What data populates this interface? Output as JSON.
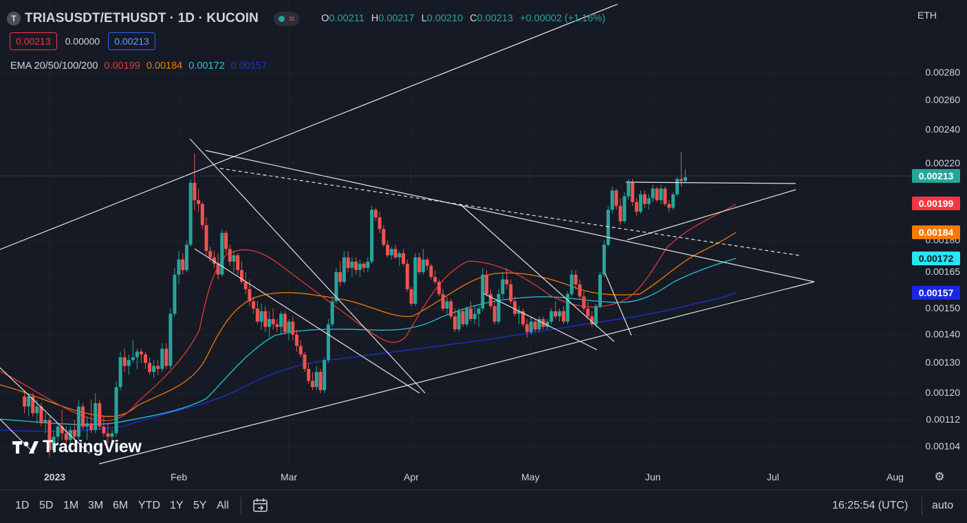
{
  "header": {
    "logo_letter": "T",
    "symbol_title": "TRIASUSDT/ETHUSDT · 1D · KUCOIN",
    "indicator_icon": "wave-icon",
    "ohlc": {
      "o_label": "O",
      "o": "0.00211",
      "h_label": "H",
      "h": "0.00217",
      "l_label": "L",
      "l": "0.00210",
      "c_label": "C",
      "c": "0.00213",
      "change": "+0.00002 (+1.16%)"
    }
  },
  "quote": {
    "sell": "0.00213",
    "spread": "0.00000",
    "buy": "0.00213"
  },
  "ema": {
    "label": "EMA 20/50/100/200",
    "v20": "0.00199",
    "v50": "0.00184",
    "v100": "0.00172",
    "v200": "0.00157"
  },
  "colors": {
    "background": "#161a25",
    "up": "#26a69a",
    "down": "#ef5350",
    "ema20": "#e53935",
    "ema50": "#f57c00",
    "ema100": "#26c6da",
    "ema200": "#1a32d6"
  },
  "price_axis": {
    "currency": "ETH",
    "ticks": [
      "0.00280",
      "0.00260",
      "0.00240",
      "0.00220",
      "0.00180",
      "0.00165",
      "0.00150",
      "0.00140",
      "0.00130",
      "0.00120",
      "0.00112",
      "0.00104"
    ],
    "tags": {
      "last": "0.00213",
      "ema20": "0.00199",
      "ema50": "0.00184",
      "ema100": "0.00172",
      "ema200": "0.00157"
    }
  },
  "time_axis": {
    "labels": [
      "2023",
      "Feb",
      "Mar",
      "Apr",
      "May",
      "Jun",
      "Jul",
      "Aug"
    ],
    "settings_icon": "gear-icon"
  },
  "bottom_bar": {
    "timeframes": [
      "1D",
      "5D",
      "1M",
      "3M",
      "6M",
      "YTD",
      "1Y",
      "5Y",
      "All"
    ],
    "range_icon": "calendar-range-icon",
    "clock": "16:25:54 (UTC)",
    "scale_mode": "auto"
  },
  "watermark": "TradingView",
  "chart_data": {
    "type": "candlestick",
    "title": "TRIASUSDT/ETHUSDT · 1D · KUCOIN",
    "x_range": [
      "2022-12-25",
      "2023-08-05"
    ],
    "y_range": [
      0.001,
      0.0029
    ],
    "y_scale": "log",
    "candles": [
      [
        "2022-12-26",
        0.00119,
        0.00121,
        0.00114,
        0.00116
      ],
      [
        "2022-12-27",
        0.00116,
        0.0012,
        0.00113,
        0.00119
      ],
      [
        "2022-12-28",
        0.00119,
        0.0012,
        0.00113,
        0.00114
      ],
      [
        "2022-12-29",
        0.00114,
        0.00118,
        0.00111,
        0.00116
      ],
      [
        "2022-12-30",
        0.00116,
        0.00117,
        0.0011,
        0.00111
      ],
      [
        "2022-12-31",
        0.00111,
        0.00114,
        0.00108,
        0.00112
      ],
      [
        "2023-01-01",
        0.00112,
        0.00113,
        0.00101,
        0.00103
      ],
      [
        "2023-01-02",
        0.00103,
        0.00109,
        0.00102,
        0.00107
      ],
      [
        "2023-01-03",
        0.00107,
        0.00111,
        0.00105,
        0.0011
      ],
      [
        "2023-01-04",
        0.0011,
        0.00115,
        0.00106,
        0.00108
      ],
      [
        "2023-01-05",
        0.00108,
        0.0011,
        0.00105,
        0.00106
      ],
      [
        "2023-01-06",
        0.00106,
        0.0011,
        0.00104,
        0.00109
      ],
      [
        "2023-01-07",
        0.00109,
        0.00112,
        0.00106,
        0.00107
      ],
      [
        "2023-01-08",
        0.00107,
        0.00118,
        0.00106,
        0.00116
      ],
      [
        "2023-01-09",
        0.00116,
        0.00117,
        0.00109,
        0.0011
      ],
      [
        "2023-01-10",
        0.0011,
        0.00113,
        0.00106,
        0.00111
      ],
      [
        "2023-01-11",
        0.00111,
        0.00118,
        0.00108,
        0.00109
      ],
      [
        "2023-01-12",
        0.00109,
        0.0012,
        0.00108,
        0.00117
      ],
      [
        "2023-01-13",
        0.00117,
        0.00118,
        0.00109,
        0.0011
      ],
      [
        "2023-01-14",
        0.0011,
        0.00113,
        0.00107,
        0.00108
      ],
      [
        "2023-01-15",
        0.00108,
        0.00111,
        0.00105,
        0.00107
      ],
      [
        "2023-01-16",
        0.00107,
        0.00109,
        0.00104,
        0.00108
      ],
      [
        "2023-01-17",
        0.00108,
        0.00124,
        0.00107,
        0.00122
      ],
      [
        "2023-01-18",
        0.00122,
        0.00134,
        0.00121,
        0.00132
      ],
      [
        "2023-01-19",
        0.00132,
        0.00135,
        0.00127,
        0.00129
      ],
      [
        "2023-01-20",
        0.00129,
        0.00133,
        0.00126,
        0.00131
      ],
      [
        "2023-01-21",
        0.00131,
        0.00138,
        0.0013,
        0.00132
      ],
      [
        "2023-01-22",
        0.00132,
        0.00135,
        0.00128,
        0.00134
      ],
      [
        "2023-01-23",
        0.00134,
        0.00135,
        0.0013,
        0.00133
      ],
      [
        "2023-01-24",
        0.00133,
        0.00134,
        0.00128,
        0.0013
      ],
      [
        "2023-01-25",
        0.0013,
        0.00132,
        0.00126,
        0.00127
      ],
      [
        "2023-01-26",
        0.00127,
        0.00131,
        0.00125,
        0.00129
      ],
      [
        "2023-01-27",
        0.00129,
        0.00131,
        0.00126,
        0.00128
      ],
      [
        "2023-01-28",
        0.00128,
        0.00137,
        0.00127,
        0.00135
      ],
      [
        "2023-01-29",
        0.00135,
        0.00137,
        0.00128,
        0.00129
      ],
      [
        "2023-01-30",
        0.00129,
        0.0015,
        0.00128,
        0.00148
      ],
      [
        "2023-01-31",
        0.00148,
        0.00167,
        0.00147,
        0.00164
      ],
      [
        "2023-02-01",
        0.00164,
        0.00175,
        0.0016,
        0.00171
      ],
      [
        "2023-02-02",
        0.00171,
        0.00174,
        0.00164,
        0.00166
      ],
      [
        "2023-02-03",
        0.00166,
        0.0018,
        0.00165,
        0.00178
      ],
      [
        "2023-02-04",
        0.00178,
        0.00212,
        0.00177,
        0.0021
      ],
      [
        "2023-02-05",
        0.0021,
        0.00226,
        0.00196,
        0.00201
      ],
      [
        "2023-02-06",
        0.00201,
        0.00207,
        0.00195,
        0.00199
      ],
      [
        "2023-02-07",
        0.00199,
        0.002,
        0.00186,
        0.00188
      ],
      [
        "2023-02-08",
        0.00188,
        0.00192,
        0.00173,
        0.00175
      ],
      [
        "2023-02-09",
        0.00175,
        0.00177,
        0.0017,
        0.00172
      ],
      [
        "2023-02-10",
        0.00172,
        0.00175,
        0.00167,
        0.00169
      ],
      [
        "2023-02-11",
        0.00169,
        0.00174,
        0.00162,
        0.00164
      ],
      [
        "2023-02-12",
        0.00164,
        0.00186,
        0.00163,
        0.00184
      ],
      [
        "2023-02-13",
        0.00184,
        0.00185,
        0.00174,
        0.00176
      ],
      [
        "2023-02-14",
        0.00176,
        0.00178,
        0.00168,
        0.0017
      ],
      [
        "2023-02-15",
        0.0017,
        0.00175,
        0.00165,
        0.00173
      ],
      [
        "2023-02-16",
        0.00173,
        0.00174,
        0.00164,
        0.00166
      ],
      [
        "2023-02-17",
        0.00166,
        0.0017,
        0.0016,
        0.00161
      ],
      [
        "2023-02-18",
        0.00161,
        0.00165,
        0.00156,
        0.00158
      ],
      [
        "2023-02-19",
        0.00158,
        0.00162,
        0.00151,
        0.00153
      ],
      [
        "2023-02-20",
        0.00153,
        0.00155,
        0.00148,
        0.0015
      ],
      [
        "2023-02-21",
        0.0015,
        0.00153,
        0.00144,
        0.00145
      ],
      [
        "2023-02-22",
        0.00145,
        0.00152,
        0.00142,
        0.00149
      ],
      [
        "2023-02-23",
        0.00149,
        0.00151,
        0.00141,
        0.00143
      ],
      [
        "2023-02-24",
        0.00143,
        0.00149,
        0.00139,
        0.00146
      ],
      [
        "2023-02-25",
        0.00146,
        0.0015,
        0.00142,
        0.00144
      ],
      [
        "2023-02-26",
        0.00144,
        0.00146,
        0.00141,
        0.00143
      ],
      [
        "2023-02-27",
        0.00143,
        0.00149,
        0.0014,
        0.00148
      ],
      [
        "2023-02-28",
        0.00148,
        0.00149,
        0.0014,
        0.00141
      ],
      [
        "2023-03-01",
        0.00141,
        0.00146,
        0.00138,
        0.00145
      ],
      [
        "2023-03-02",
        0.00145,
        0.00147,
        0.00138,
        0.0014
      ],
      [
        "2023-03-03",
        0.0014,
        0.00142,
        0.00134,
        0.00136
      ],
      [
        "2023-03-04",
        0.00136,
        0.00138,
        0.00132,
        0.00133
      ],
      [
        "2023-03-05",
        0.00133,
        0.00134,
        0.00127,
        0.00128
      ],
      [
        "2023-03-06",
        0.00128,
        0.0013,
        0.00123,
        0.00124
      ],
      [
        "2023-03-07",
        0.00124,
        0.00127,
        0.00121,
        0.00122
      ],
      [
        "2023-03-08",
        0.00122,
        0.00129,
        0.00121,
        0.00127
      ],
      [
        "2023-03-09",
        0.00127,
        0.00128,
        0.0012,
        0.00121
      ],
      [
        "2023-03-10",
        0.00121,
        0.00132,
        0.0012,
        0.00131
      ],
      [
        "2023-03-11",
        0.00131,
        0.00146,
        0.0013,
        0.00144
      ],
      [
        "2023-03-12",
        0.00144,
        0.00155,
        0.00143,
        0.00153
      ],
      [
        "2023-03-13",
        0.00153,
        0.00167,
        0.00152,
        0.00165
      ],
      [
        "2023-03-14",
        0.00165,
        0.0017,
        0.00159,
        0.00161
      ],
      [
        "2023-03-15",
        0.00161,
        0.00175,
        0.0016,
        0.00172
      ],
      [
        "2023-03-16",
        0.00172,
        0.00175,
        0.00165,
        0.00167
      ],
      [
        "2023-03-17",
        0.00167,
        0.00172,
        0.00163,
        0.0017
      ],
      [
        "2023-03-18",
        0.0017,
        0.00172,
        0.00164,
        0.00166
      ],
      [
        "2023-03-19",
        0.00166,
        0.00171,
        0.00163,
        0.00169
      ],
      [
        "2023-03-20",
        0.00169,
        0.0017,
        0.00165,
        0.00167
      ],
      [
        "2023-03-21",
        0.00167,
        0.00172,
        0.00165,
        0.0017
      ],
      [
        "2023-03-22",
        0.0017,
        0.00198,
        0.00169,
        0.00196
      ],
      [
        "2023-03-23",
        0.00196,
        0.00197,
        0.0019,
        0.00192
      ],
      [
        "2023-03-24",
        0.00192,
        0.00195,
        0.00184,
        0.00186
      ],
      [
        "2023-03-25",
        0.00186,
        0.00188,
        0.00177,
        0.00178
      ],
      [
        "2023-03-26",
        0.00178,
        0.0018,
        0.00172,
        0.00173
      ],
      [
        "2023-03-27",
        0.00173,
        0.00177,
        0.00171,
        0.00176
      ],
      [
        "2023-03-28",
        0.00176,
        0.00178,
        0.00171,
        0.00172
      ],
      [
        "2023-03-29",
        0.00172,
        0.00175,
        0.00168,
        0.00174
      ],
      [
        "2023-03-30",
        0.00174,
        0.00176,
        0.00168,
        0.00169
      ],
      [
        "2023-03-31",
        0.00169,
        0.00171,
        0.00157,
        0.00158
      ],
      [
        "2023-04-01",
        0.00158,
        0.00159,
        0.00151,
        0.00152
      ],
      [
        "2023-04-02",
        0.00152,
        0.00174,
        0.00151,
        0.00172
      ],
      [
        "2023-04-03",
        0.00172,
        0.00174,
        0.00164,
        0.00165
      ],
      [
        "2023-04-04",
        0.00165,
        0.00176,
        0.00164,
        0.00171
      ],
      [
        "2023-04-05",
        0.00171,
        0.00172,
        0.00166,
        0.00168
      ],
      [
        "2023-04-06",
        0.00168,
        0.00169,
        0.00162,
        0.00163
      ],
      [
        "2023-04-07",
        0.00163,
        0.00166,
        0.0016,
        0.00161
      ],
      [
        "2023-04-08",
        0.00161,
        0.00162,
        0.00155,
        0.00156
      ],
      [
        "2023-04-09",
        0.00156,
        0.00158,
        0.00149,
        0.0015
      ],
      [
        "2023-04-10",
        0.0015,
        0.00155,
        0.00148,
        0.00153
      ],
      [
        "2023-04-11",
        0.00153,
        0.00154,
        0.00146,
        0.00147
      ],
      [
        "2023-04-12",
        0.00147,
        0.0015,
        0.00141,
        0.00142
      ],
      [
        "2023-04-13",
        0.00142,
        0.0015,
        0.00141,
        0.00149
      ],
      [
        "2023-04-14",
        0.00149,
        0.0015,
        0.00143,
        0.00144
      ],
      [
        "2023-04-15",
        0.00144,
        0.00151,
        0.00143,
        0.0015
      ],
      [
        "2023-04-16",
        0.0015,
        0.00153,
        0.00145,
        0.00146
      ],
      [
        "2023-04-17",
        0.00146,
        0.00151,
        0.00144,
        0.00148
      ],
      [
        "2023-04-18",
        0.00148,
        0.00151,
        0.00143,
        0.0015
      ],
      [
        "2023-04-19",
        0.0015,
        0.00167,
        0.00149,
        0.00164
      ],
      [
        "2023-04-20",
        0.00164,
        0.00166,
        0.00155,
        0.00156
      ],
      [
        "2023-04-21",
        0.00156,
        0.00158,
        0.0015,
        0.00151
      ],
      [
        "2023-04-22",
        0.00151,
        0.00153,
        0.00144,
        0.00145
      ]
    ],
    "series": [
      {
        "name": "EMA 20",
        "last": 0.00199
      },
      {
        "name": "EMA 50",
        "last": 0.00184
      },
      {
        "name": "EMA 100",
        "last": 0.00172
      },
      {
        "name": "EMA 200",
        "last": 0.00157
      }
    ]
  }
}
